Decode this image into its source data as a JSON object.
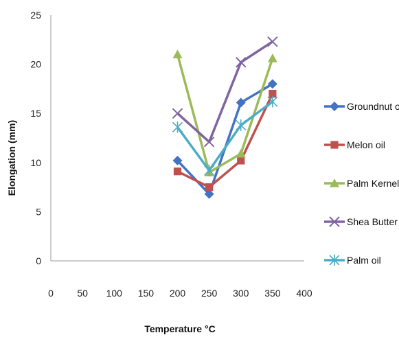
{
  "chart_data": {
    "type": "line",
    "title": "",
    "xlabel": "Temperature °C",
    "ylabel": "Elongation (mm)",
    "xlim": [
      0,
      400
    ],
    "ylim": [
      0,
      25
    ],
    "xticks": [
      0,
      50,
      100,
      150,
      200,
      250,
      300,
      350,
      400
    ],
    "yticks": [
      0,
      5,
      10,
      15,
      20,
      25
    ],
    "grid": false,
    "legend_position": "right",
    "x": [
      200,
      250,
      300,
      350
    ],
    "series": [
      {
        "name": "Groundnut oil",
        "color": "#4472C4",
        "marker": "diamond",
        "values": [
          10.2,
          6.8,
          16.1,
          18.0
        ]
      },
      {
        "name": "Melon oil",
        "color": "#C0504D",
        "marker": "square",
        "values": [
          9.1,
          7.5,
          10.2,
          17.0
        ]
      },
      {
        "name": "Palm Kernel oil",
        "color": "#9BBB59",
        "marker": "triangle",
        "values": [
          21.0,
          9.0,
          10.9,
          20.6
        ]
      },
      {
        "name": "Shea Butter oil",
        "color": "#8064A2",
        "marker": "x",
        "values": [
          15.0,
          12.1,
          20.2,
          22.3
        ]
      },
      {
        "name": "Palm oil",
        "color": "#4BACC6",
        "marker": "star",
        "values": [
          13.6,
          9.2,
          13.8,
          16.2
        ]
      }
    ]
  }
}
